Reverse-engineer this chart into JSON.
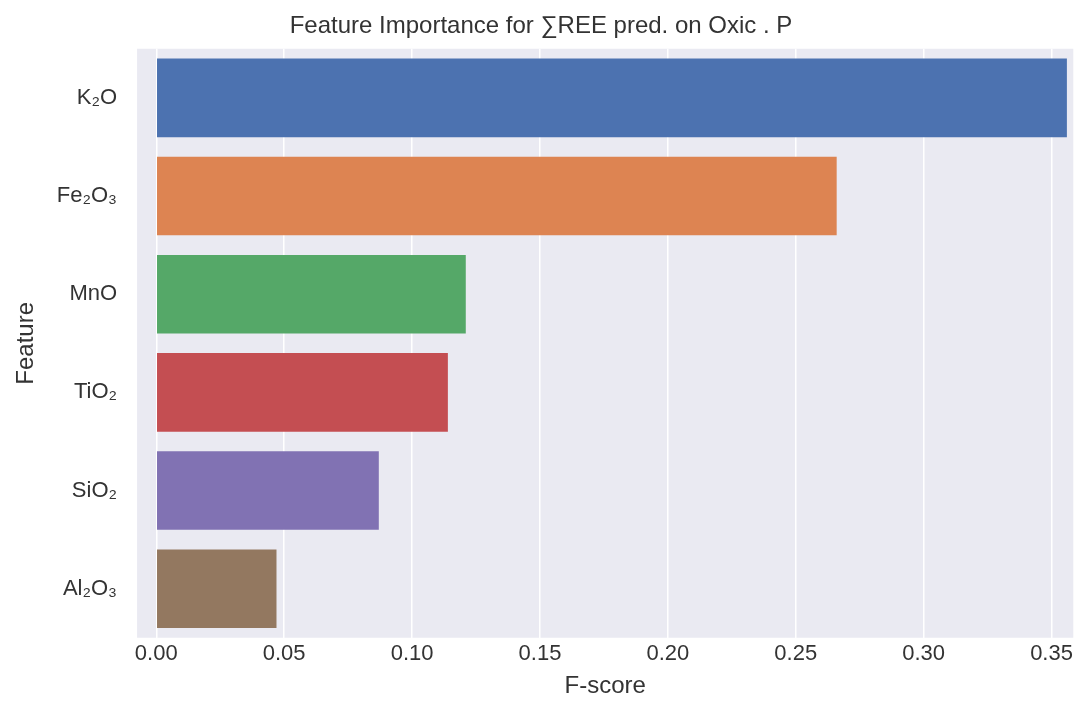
{
  "chart_data": {
    "type": "bar",
    "orientation": "horizontal",
    "title": "Feature Importance for ∑REE pred. on Oxic . P",
    "xlabel": "F-score",
    "ylabel": "Feature",
    "categories": [
      "K₂O",
      "Fe₂O₃",
      "MnO",
      "TiO₂",
      "SiO₂",
      "Al₂O₃"
    ],
    "values": [
      0.356,
      0.266,
      0.121,
      0.114,
      0.087,
      0.047
    ],
    "colors": [
      "#4c72b0",
      "#dd8452",
      "#55a868",
      "#c44e52",
      "#8172b3",
      "#937860"
    ],
    "xlim": [
      -0.0075,
      0.3585
    ],
    "xticks": [
      {
        "value": 0,
        "label": "0.00"
      },
      0.05,
      {
        "value": 0.1,
        "label": "0.10"
      },
      0.15,
      {
        "value": 0.2,
        "label": "0.20"
      },
      0.25,
      {
        "value": 0.3,
        "label": "0.30"
      },
      0.35
    ],
    "grid": "x"
  }
}
